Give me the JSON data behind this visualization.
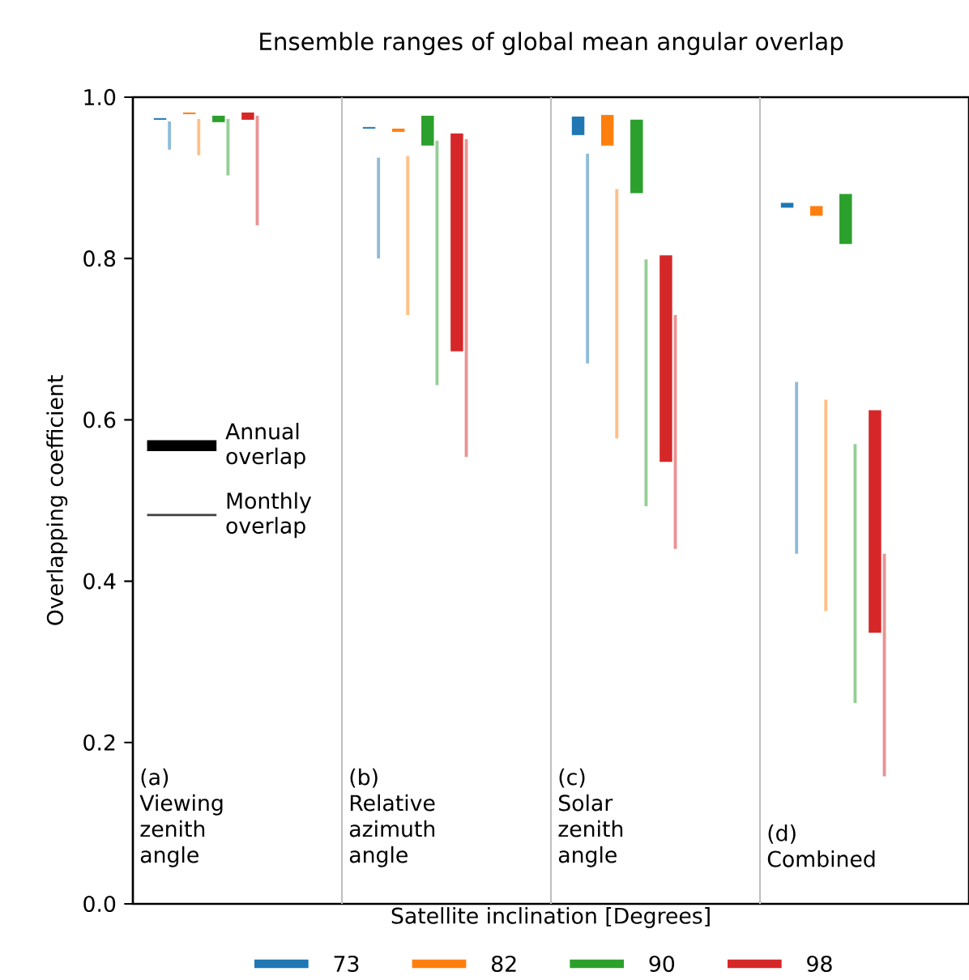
{
  "chart_data": {
    "type": "bar",
    "title": "Ensemble ranges of global mean angular overlap",
    "xlabel": "Satellite inclination [Degrees]",
    "ylabel": "Overlapping coefficient",
    "categories": [
      "(a) Viewing zenith angle",
      "(b) Relative azimuth angle",
      "(c) Solar zenith angle",
      "(d) Combined"
    ],
    "ylim": [
      0,
      1
    ],
    "yticks": [
      {
        "value": 0,
        "label": "0.0"
      },
      {
        "value": 0.2,
        "label": "0.2"
      },
      {
        "value": 0.4,
        "label": "0.4"
      },
      {
        "value": 0.6,
        "label": "0.6"
      },
      {
        "value": 0.8,
        "label": "0.8"
      },
      {
        "value": 1,
        "label": "1.0"
      }
    ],
    "legend": "bottom",
    "annotations": [
      "Annual overlap",
      "Monthly overlap"
    ],
    "series": [
      {
        "name": "73",
        "color": "#1f77b4",
        "base": [
          0.972,
          0.961,
          0.953,
          0.863
        ],
        "values": [
          0.002,
          0.002,
          0.023,
          0.006
        ]
      },
      {
        "color": "#8fbbd9",
        "base": [
          0.935,
          0.8,
          0.67,
          0.434
        ],
        "values": [
          0.035,
          0.125,
          0.26,
          0.213
        ]
      },
      {
        "name": "82",
        "color": "#ff7f0e",
        "base": [
          0.979,
          0.957,
          0.94,
          0.853
        ],
        "values": [
          0.002,
          0.004,
          0.038,
          0.012
        ]
      },
      {
        "color": "#ffbf86",
        "base": [
          0.928,
          0.73,
          0.577,
          0.363
        ],
        "values": [
          0.045,
          0.197,
          0.309,
          0.262
        ]
      },
      {
        "name": "90",
        "color": "#2ca02c",
        "base": [
          0.969,
          0.94,
          0.881,
          0.818
        ],
        "values": [
          0.008,
          0.037,
          0.091,
          0.062
        ]
      },
      {
        "color": "#95cf95",
        "base": [
          0.903,
          0.643,
          0.493,
          0.249
        ],
        "values": [
          0.07,
          0.303,
          0.306,
          0.321
        ]
      },
      {
        "name": "98",
        "color": "#d62728",
        "base": [
          0.972,
          0.685,
          0.548,
          0.336
        ],
        "values": [
          0.009,
          0.27,
          0.256,
          0.276
        ]
      },
      {
        "color": "#ea9393",
        "base": [
          0.841,
          0.554,
          0.44,
          0.158
        ],
        "values": [
          0.136,
          0.394,
          0.29,
          0.276
        ]
      }
    ]
  }
}
